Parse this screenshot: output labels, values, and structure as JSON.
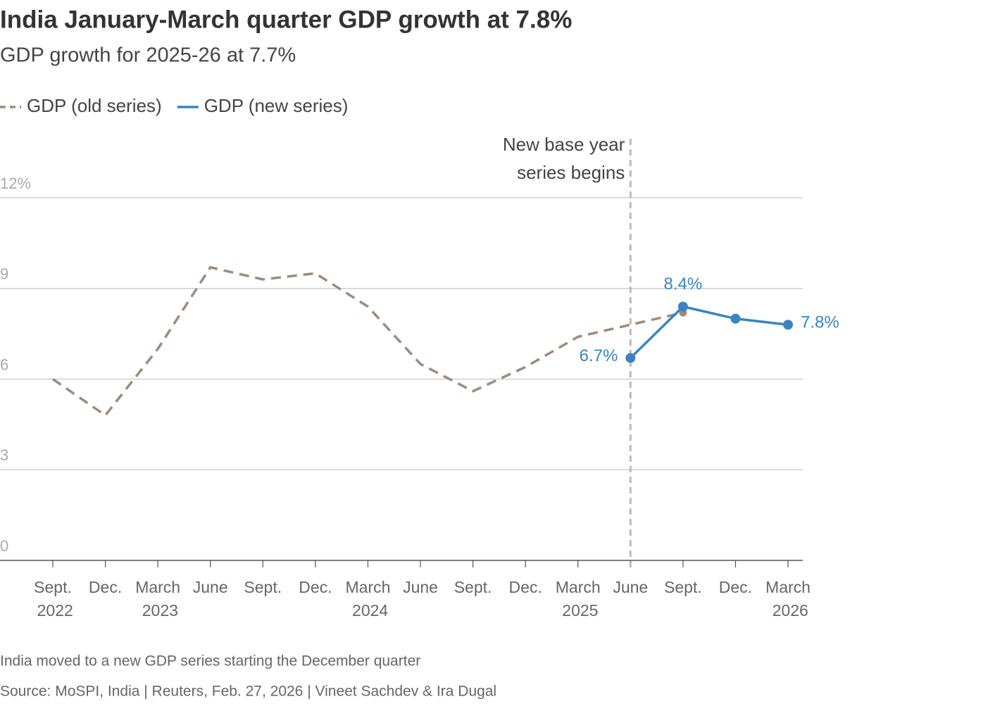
{
  "chart_data": {
    "type": "line",
    "title": "India January-March quarter GDP growth at 7.8%",
    "subtitle": "GDP growth for 2025-26 at 7.7%",
    "categories": [
      "Sept. 2022",
      "Dec.",
      "March 2023",
      "June",
      "Sept.",
      "Dec.",
      "March 2024",
      "June",
      "Sept.",
      "Dec.",
      "March 2025",
      "June",
      "Sept.",
      "Dec.",
      "March 2026"
    ],
    "series": [
      {
        "name": "GDP (old series)",
        "color": "#9c8b7e",
        "dashed": true,
        "values": [
          6.0,
          4.8,
          7.0,
          9.7,
          9.3,
          9.5,
          8.4,
          6.5,
          5.6,
          6.4,
          7.4,
          7.8,
          8.2,
          null,
          null
        ]
      },
      {
        "name": "GDP (new series)",
        "color": "#3a84c0",
        "dashed": false,
        "values": [
          null,
          null,
          null,
          null,
          null,
          null,
          null,
          null,
          null,
          null,
          null,
          6.7,
          8.4,
          8.0,
          7.8
        ],
        "value_labels": [
          null,
          null,
          null,
          null,
          null,
          null,
          null,
          null,
          null,
          null,
          null,
          "6.7%",
          "8.4%",
          null,
          "7.8%"
        ]
      }
    ],
    "ylim": [
      0,
      12
    ],
    "yticks": [
      0,
      3,
      6,
      9,
      {
        "value": 12,
        "label": "12%"
      }
    ],
    "grid": true,
    "annotation": [
      "New base year",
      "series begins"
    ],
    "note": "India moved to a new GDP series starting the December quarter",
    "source": "Source: MoSPI, India | Reuters, Feb. 27, 2026 | Vineet Sachdev & Ira Dugal"
  }
}
